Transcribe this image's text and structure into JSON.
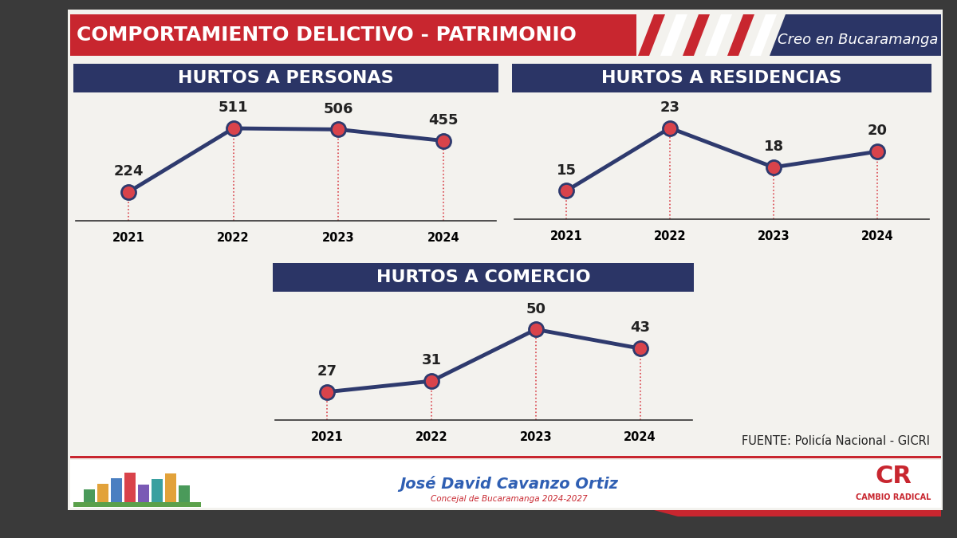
{
  "header": {
    "title": "COMPORTAMIENTO DELICTIVO - PATRIMONIO",
    "slogan": "Creo en Bucaramanga"
  },
  "chart_data": [
    {
      "type": "line",
      "title": "HURTOS A PERSONAS",
      "categories": [
        "2021",
        "2022",
        "2023",
        "2024"
      ],
      "values": [
        224,
        511,
        506,
        455
      ],
      "color": "#2e3a6e",
      "marker": "circle",
      "line_style": "solid",
      "data_labels": true,
      "tick_labels": "x"
    },
    {
      "type": "line",
      "title": "HURTOS A RESIDENCIAS",
      "categories": [
        "2021",
        "2022",
        "2023",
        "2024"
      ],
      "values": [
        15,
        23,
        18,
        20
      ],
      "color": "#2e3a6e",
      "marker": "circle",
      "line_style": "solid",
      "data_labels": true,
      "tick_labels": "x"
    },
    {
      "type": "line",
      "title": "HURTOS A COMERCIO",
      "categories": [
        "2021",
        "2022",
        "2023",
        "2024"
      ],
      "values": [
        27,
        31,
        50,
        43
      ],
      "color": "#2e3a6e",
      "marker": "circle",
      "line_style": "solid",
      "data_labels": true,
      "tick_labels": "x"
    }
  ],
  "source": "FUENTE: Policía Nacional - GICRI",
  "footer": {
    "name": "José David Cavanzo Ortiz",
    "role": "Concejal de Bucaramanga 2024-2027",
    "logo": "CR",
    "party": "CAMBIO RADICAL"
  }
}
